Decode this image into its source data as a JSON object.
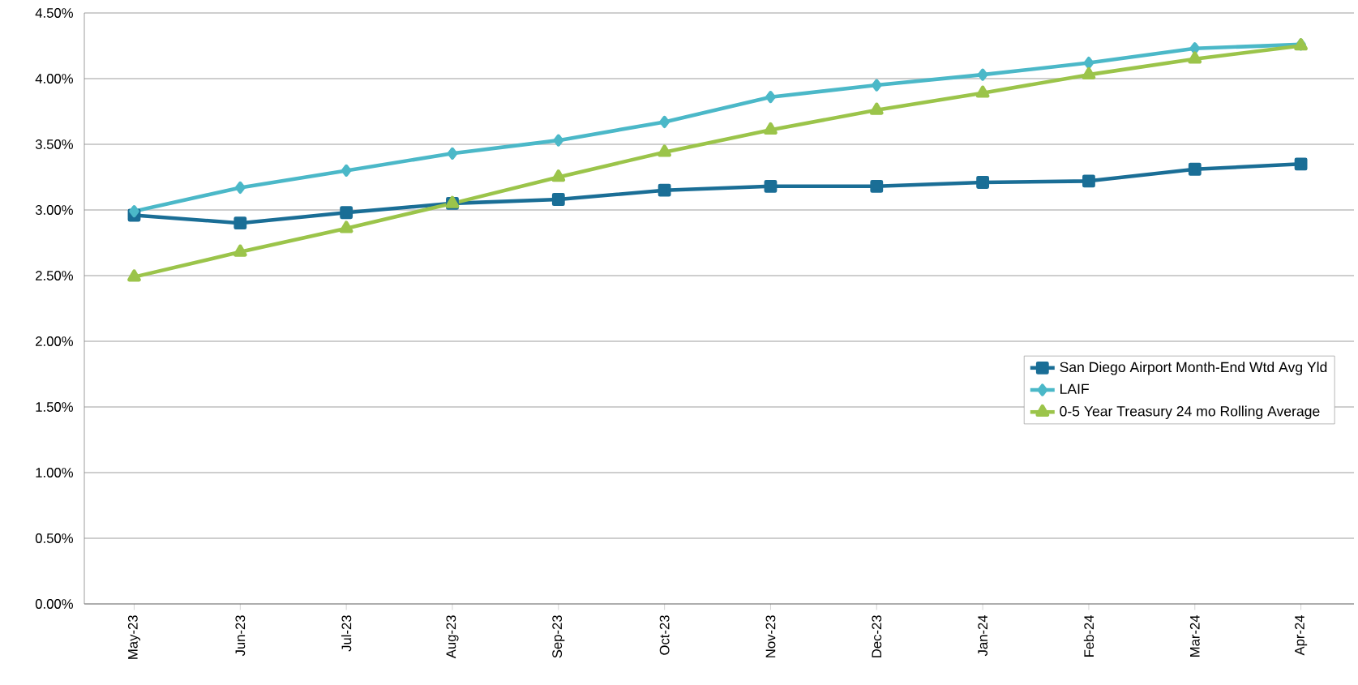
{
  "chart_data": {
    "type": "line",
    "categories": [
      "May-23",
      "Jun-23",
      "Jul-23",
      "Aug-23",
      "Sep-23",
      "Oct-23",
      "Nov-23",
      "Dec-23",
      "Jan-24",
      "Feb-24",
      "Mar-24",
      "Apr-24"
    ],
    "series": [
      {
        "name": "San Diego Airport Month-End Wtd Avg Yld",
        "color": "#1a6e96",
        "marker": "square",
        "values": [
          2.96,
          2.9,
          2.98,
          3.05,
          3.08,
          3.15,
          3.18,
          3.18,
          3.21,
          3.22,
          3.31,
          3.35
        ]
      },
      {
        "name": "LAIF",
        "color": "#4bb8c8",
        "marker": "diamond",
        "values": [
          2.99,
          3.17,
          3.3,
          3.43,
          3.53,
          3.67,
          3.86,
          3.95,
          4.03,
          4.12,
          4.23,
          4.26
        ]
      },
      {
        "name": "0-5 Year Treasury 24 mo Rolling Average",
        "color": "#9bc44a",
        "marker": "triangle",
        "values": [
          2.49,
          2.68,
          2.86,
          3.05,
          3.25,
          3.44,
          3.61,
          3.76,
          3.89,
          4.03,
          4.15,
          4.25
        ]
      }
    ],
    "ylim": [
      0,
      4.5
    ],
    "yticks": [
      {
        "value": 0,
        "label": "0.00%"
      },
      {
        "value": 0.5,
        "label": "0.50%"
      },
      {
        "value": 1,
        "label": "1.00%"
      },
      {
        "value": 1.5,
        "label": "1.50%"
      },
      {
        "value": 2,
        "label": "2.00%"
      },
      {
        "value": 2.5,
        "label": "2.50%"
      },
      {
        "value": 3,
        "label": "3.00%"
      },
      {
        "value": 3.5,
        "label": "3.50%"
      },
      {
        "value": 4,
        "label": "4.00%"
      },
      {
        "value": 4.5,
        "label": "4.50%"
      }
    ],
    "grid": "y",
    "legend": "right",
    "line_style": "solid"
  }
}
